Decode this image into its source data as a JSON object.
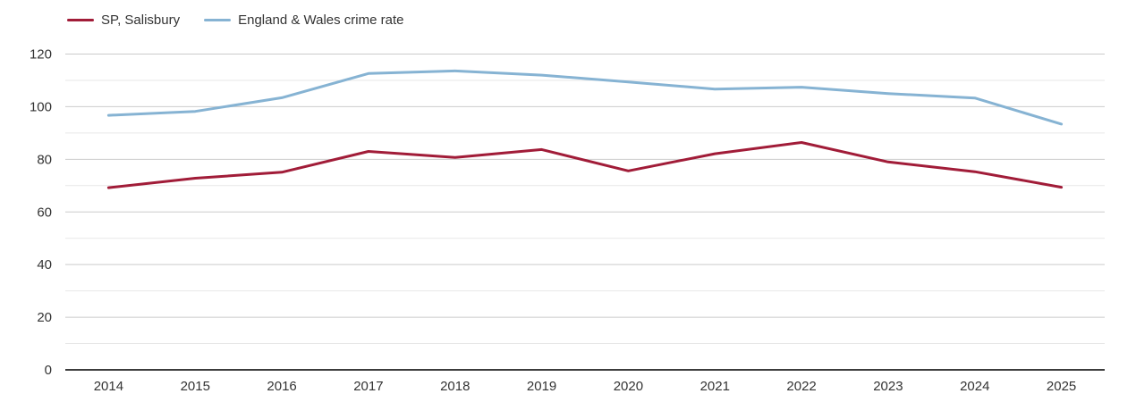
{
  "legend": {
    "items": [
      {
        "label": "SP, Salisbury",
        "color": "#a11c38"
      },
      {
        "label": "England & Wales crime rate",
        "color": "#86b3d3"
      }
    ]
  },
  "chart_data": {
    "type": "line",
    "title": "",
    "xlabel": "",
    "ylabel": "",
    "x": [
      2014,
      2015,
      2016,
      2017,
      2018,
      2019,
      2020,
      2021,
      2022,
      2023,
      2024,
      2025
    ],
    "series": [
      {
        "name": "SP, Salisbury",
        "color": "#a11c38",
        "values": [
          69.2,
          72.8,
          75.1,
          83.0,
          80.7,
          83.7,
          75.6,
          82.1,
          86.4,
          79.0,
          75.3,
          69.4
        ]
      },
      {
        "name": "England & Wales crime rate",
        "color": "#86b3d3",
        "values": [
          96.7,
          98.2,
          103.4,
          112.6,
          113.6,
          112.0,
          109.4,
          106.7,
          107.4,
          105.0,
          103.3,
          93.4
        ]
      }
    ],
    "ylim": [
      0,
      120
    ],
    "yticks": [
      0,
      20,
      40,
      60,
      80,
      100,
      120
    ],
    "minor_yticks": [
      10,
      30,
      50,
      70,
      90,
      110
    ],
    "grid": true,
    "legend_position": "top-left",
    "colors": {
      "major_gridline": "#cbcbcb",
      "minor_gridline": "#e7e7e7",
      "axis_line": "#3c3c3c",
      "tick_label": "#333333"
    }
  }
}
